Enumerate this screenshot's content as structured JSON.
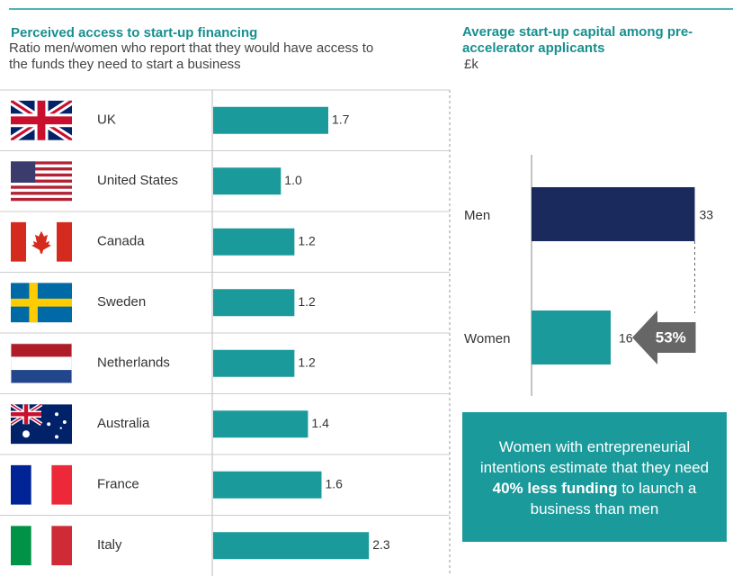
{
  "chart_data": [
    {
      "type": "bar",
      "horizontal": true,
      "title": "Perceived access to start-up financing",
      "subtitle": "Ratio men/women who report that they would have access to the funds they need to start a business",
      "categories": [
        "UK",
        "United States",
        "Canada",
        "Sweden",
        "Netherlands",
        "Australia",
        "France",
        "Italy"
      ],
      "values": [
        1.7,
        1.0,
        1.2,
        1.2,
        1.2,
        1.4,
        1.6,
        2.3
      ],
      "value_labels": [
        "1.7",
        "1.0",
        "1.2",
        "1.2",
        "1.2",
        "1.4",
        "1.6",
        "2.3"
      ],
      "color": "#1a9a9b"
    },
    {
      "type": "bar",
      "horizontal": true,
      "title": "Average start-up capital among pre-accelerator applicants",
      "subtitle": "£k",
      "categories": [
        "Men",
        "Women"
      ],
      "values": [
        33,
        16
      ],
      "colors": [
        "#1b2a5c",
        "#1a9a9b"
      ],
      "annotation": "53%",
      "note": [
        "Women with entrepreneurial intentions estimate that they need ",
        "40% less funding",
        " to launch a business than men"
      ]
    }
  ]
}
